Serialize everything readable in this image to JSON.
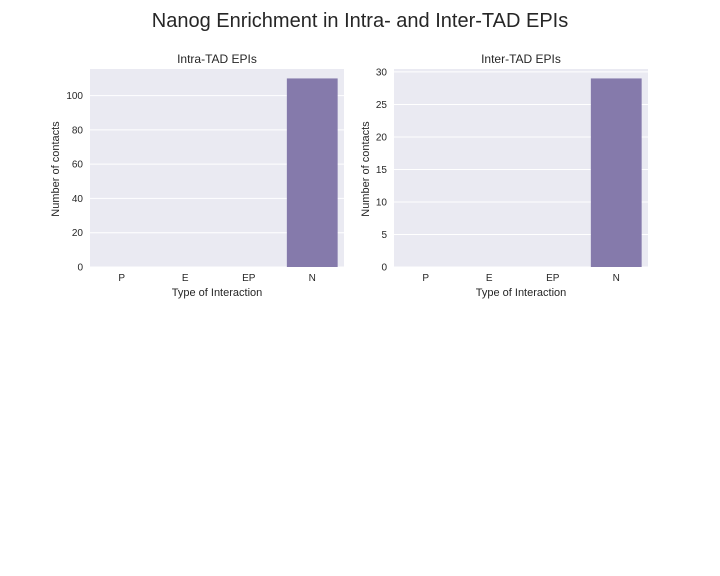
{
  "figure": {
    "suptitle": "Nanog Enrichment in Intra- and Inter-TAD EPIs",
    "plot_bg": "#eaeaf2",
    "grid_color": "#ffffff",
    "bar_color": "#857aab"
  },
  "chart_data": [
    {
      "type": "bar",
      "title": "Intra-TAD EPIs",
      "xlabel": "Type of Interaction",
      "ylabel": "Number of contacts",
      "categories": [
        "P",
        "E",
        "EP",
        "N"
      ],
      "values": [
        0,
        0,
        0,
        110
      ],
      "ylim": [
        0,
        115.5
      ],
      "yticks": [
        0,
        20,
        40,
        60,
        80,
        100
      ],
      "grid": true
    },
    {
      "type": "bar",
      "title": "Inter-TAD EPIs",
      "xlabel": "Type of Interaction",
      "ylabel": "Number of contacts",
      "categories": [
        "P",
        "E",
        "EP",
        "N"
      ],
      "values": [
        0,
        0,
        0,
        29
      ],
      "ylim": [
        0,
        30.45
      ],
      "yticks": [
        0,
        5,
        10,
        15,
        20,
        25,
        30
      ],
      "grid": true
    }
  ]
}
